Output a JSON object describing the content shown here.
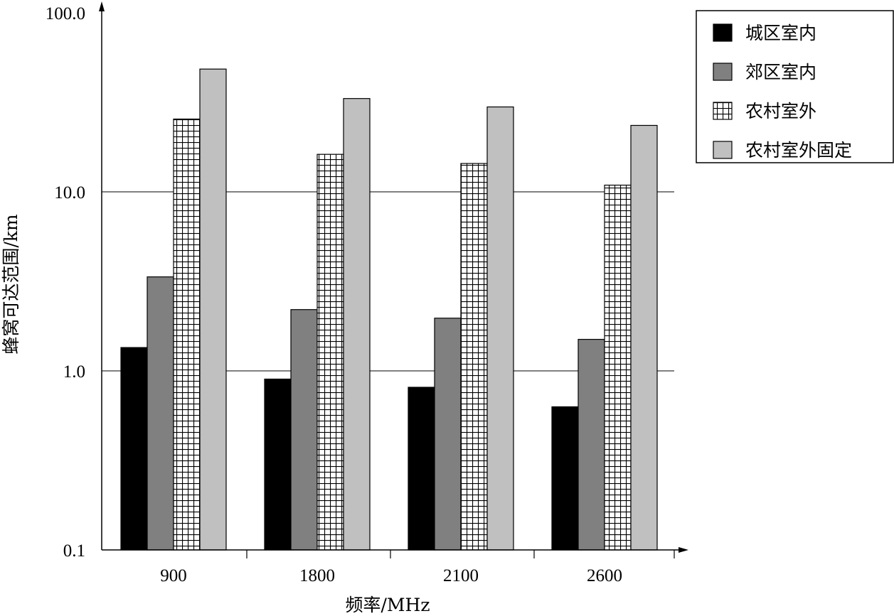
{
  "chart_data": {
    "type": "bar",
    "scale": "log",
    "xlabel": "频率/MHz",
    "ylabel": "蜂窝可达范围/km",
    "ylim": [
      0.1,
      100.0
    ],
    "yticks": [
      "0.1",
      "1.0",
      "10.0",
      "100.0"
    ],
    "categories": [
      "900",
      "1800",
      "2100",
      "2600"
    ],
    "grid": "horizontal",
    "legend_position": "top-right",
    "series": [
      {
        "name": "城区室内",
        "values": [
          1.35,
          0.9,
          0.81,
          0.63
        ],
        "fill": "#000000",
        "pattern": "solid"
      },
      {
        "name": "郊区室内",
        "values": [
          3.35,
          2.2,
          1.97,
          1.5
        ],
        "fill": "#808080",
        "pattern": "solid"
      },
      {
        "name": "农村室外",
        "values": [
          25.5,
          16.2,
          14.4,
          10.9
        ],
        "fill": "#ffffff",
        "pattern": "grid"
      },
      {
        "name": "农村室外固定",
        "values": [
          48.5,
          33.2,
          29.8,
          23.5
        ],
        "fill": "#c0c0c0",
        "pattern": "solid"
      }
    ]
  }
}
